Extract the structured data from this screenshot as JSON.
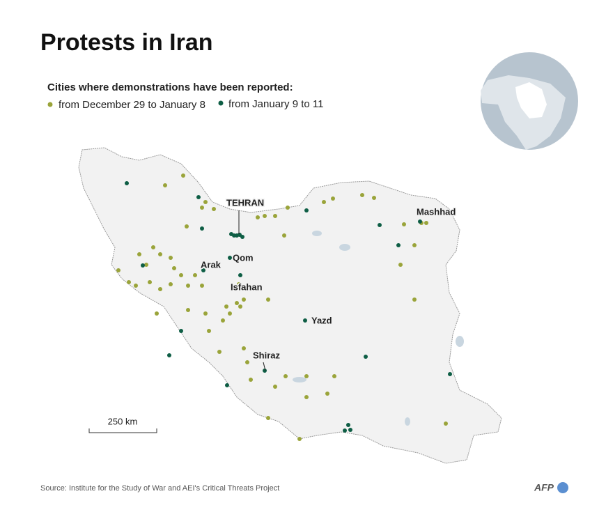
{
  "header": {
    "title": "Protests in Iran"
  },
  "legend": {
    "title": "Cities where demonstrations have been reported:",
    "items": [
      {
        "label": "from December 29 to January 8",
        "color": "#9aa43a"
      },
      {
        "label": "from January 9 to 11",
        "color": "#0e5e45"
      }
    ]
  },
  "cities": [
    "TEHRAN",
    "Qom",
    "Arak",
    "Isfahan",
    "Yazd",
    "Shiraz",
    "Mashhad"
  ],
  "scale": "250 km",
  "footer": {
    "source": "Source: Institute for the Study of War and AEI's Critical Threats Project",
    "logo": "AFP"
  }
}
